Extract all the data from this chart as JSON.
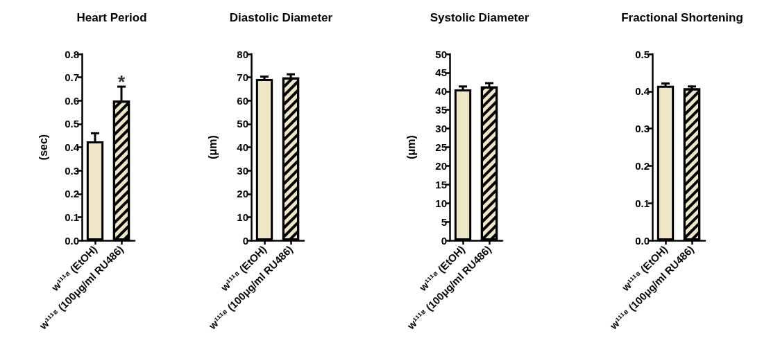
{
  "chart_data": [
    {
      "type": "bar",
      "title": "Heart Period",
      "ylabel": "(sec)",
      "categories": [
        "w¹¹¹⁸ (EtOH)",
        "w¹¹¹⁸ (100μg/ml RU486)"
      ],
      "values": [
        0.425,
        0.6
      ],
      "errors": [
        0.035,
        0.06
      ],
      "colors": [
        "#efe6c8",
        "#efe6c8"
      ],
      "ylim": [
        0,
        0.8
      ],
      "yticks": [
        {
          "value": 0,
          "label": "0.0"
        },
        0.1,
        0.2,
        0.3,
        0.4,
        0.5,
        0.6,
        0.7,
        0.8
      ],
      "grid": false,
      "annotations": [
        {
          "text": "*",
          "x": "w¹¹¹⁸ (100μg/ml RU486)",
          "y": 0.68
        }
      ]
    },
    {
      "type": "bar",
      "title": "Diastolic Diameter",
      "ylabel": "(μm)",
      "categories": [
        "w¹¹¹⁸ (EtOH)",
        "w¹¹¹⁸ (100μg/ml RU486)"
      ],
      "values": [
        69.3,
        70
      ],
      "errors": [
        1,
        1.3
      ],
      "colors": [
        "#efe6c8",
        "#efe6c8"
      ],
      "ylim": [
        0,
        80
      ],
      "yticks": [
        0,
        10,
        20,
        30,
        40,
        50,
        60,
        70,
        80
      ],
      "grid": false
    },
    {
      "type": "bar",
      "title": "Systolic Diameter",
      "ylabel": "(μm)",
      "categories": [
        "w¹¹¹⁸ (EtOH)",
        "w¹¹¹⁸ (100μg/ml RU486)"
      ],
      "values": [
        40.5,
        41.3
      ],
      "errors": [
        0.8,
        0.9
      ],
      "colors": [
        "#efe6c8",
        "#efe6c8"
      ],
      "ylim": [
        0,
        50
      ],
      "yticks": [
        0,
        5,
        10,
        15,
        20,
        25,
        30,
        35,
        40,
        45,
        50
      ],
      "grid": false
    },
    {
      "type": "bar",
      "title": "Fractional Shortening",
      "categories": [
        "w¹¹¹⁸ (EtOH)",
        "w¹¹¹⁸ (100μg/ml RU486)"
      ],
      "values": [
        0.415,
        0.408
      ],
      "errors": [
        0.006,
        0.005
      ],
      "colors": [
        "#efe6c8",
        "#efe6c8"
      ],
      "ylim": [
        0,
        0.5
      ],
      "yticks": [
        {
          "value": 0,
          "label": "0.0"
        },
        0.1,
        0.2,
        0.3,
        0.4,
        0.5
      ],
      "grid": false
    }
  ]
}
